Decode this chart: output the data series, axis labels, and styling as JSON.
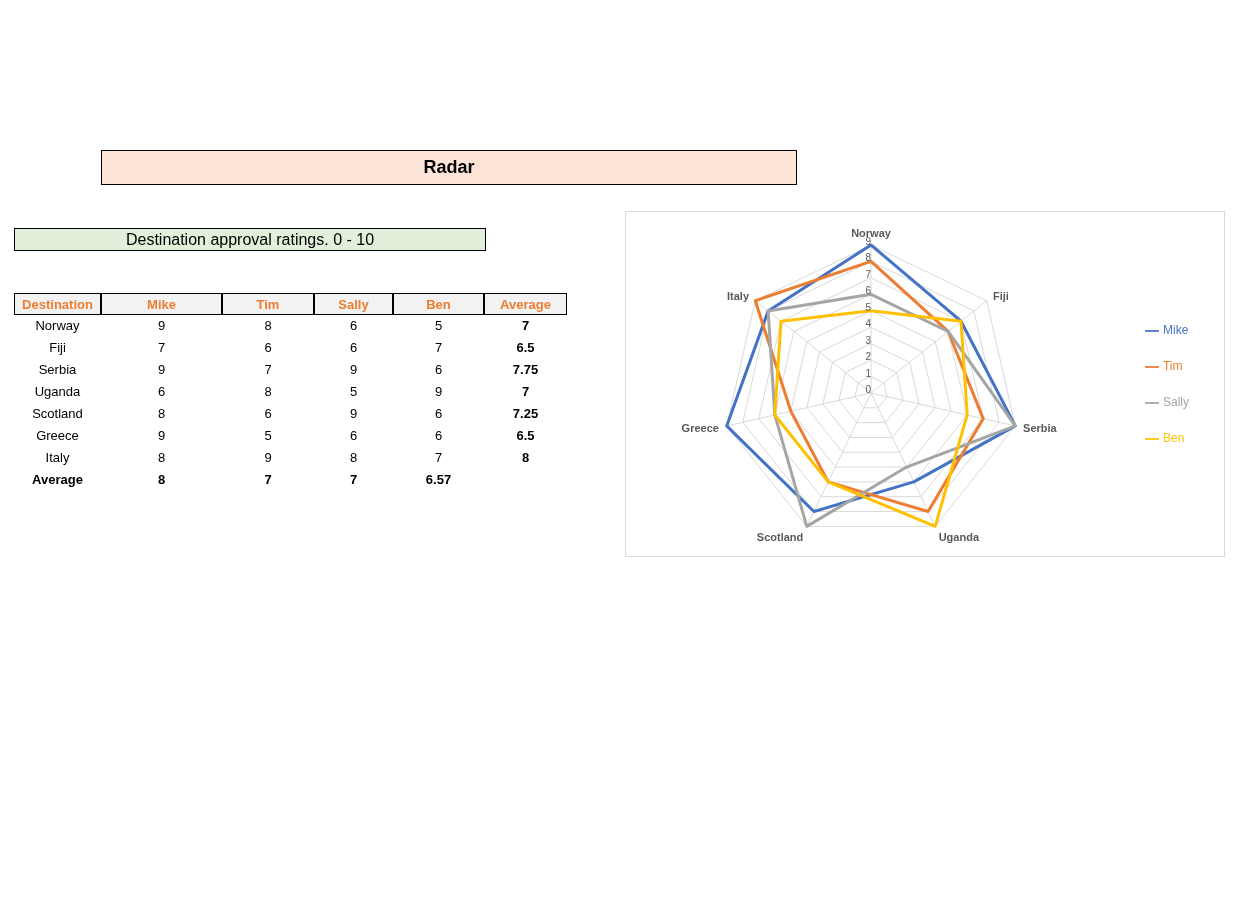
{
  "chart_data": [
    {
      "type": "other",
      "title": "Radar",
      "subtitle": "Destination approval ratings. 0 - 10",
      "annotations": [
        "Destination",
        "Mike",
        "Tim",
        "Sally",
        "Ben",
        "Average",
        "Norway",
        "9",
        "8",
        "6",
        "5",
        "7",
        "Fiji",
        "7",
        "6",
        "6",
        "7",
        "6.5",
        "Serbia",
        "9",
        "7",
        "9",
        "6",
        "7.75",
        "Uganda",
        "6",
        "8",
        "5",
        "9",
        "7",
        "Scotland",
        "8",
        "6",
        "9",
        "6",
        "7.25",
        "Greece",
        "9",
        "5",
        "6",
        "6",
        "6.5",
        "Italy",
        "8",
        "9",
        "8",
        "7",
        "8",
        "Average",
        "8",
        "7",
        "7",
        "6.57"
      ]
    },
    {
      "type": "radar",
      "categories": [
        "Norway",
        "Fiji",
        "Serbia",
        "Uganda",
        "Scotland",
        "Greece",
        "Italy"
      ],
      "series": [
        {
          "name": "Mike",
          "color": "#4472c4",
          "values": [
            9,
            7,
            9,
            6,
            8,
            9,
            8
          ]
        },
        {
          "name": "Tim",
          "color": "#ed7d31",
          "values": [
            8,
            6,
            7,
            8,
            6,
            5,
            9
          ]
        },
        {
          "name": "Sally",
          "color": "#a5a5a5",
          "values": [
            6,
            6,
            9,
            5,
            9,
            6,
            8
          ]
        },
        {
          "name": "Ben",
          "color": "#ffc000",
          "values": [
            5,
            7,
            6,
            9,
            6,
            6,
            7
          ]
        }
      ],
      "ylim": [
        0,
        9
      ],
      "yticks": [
        0,
        1,
        2,
        3,
        4,
        5,
        6,
        7,
        8,
        9
      ],
      "grid": true,
      "legend": "right",
      "marker": "none",
      "line_style": "solid"
    }
  ]
}
